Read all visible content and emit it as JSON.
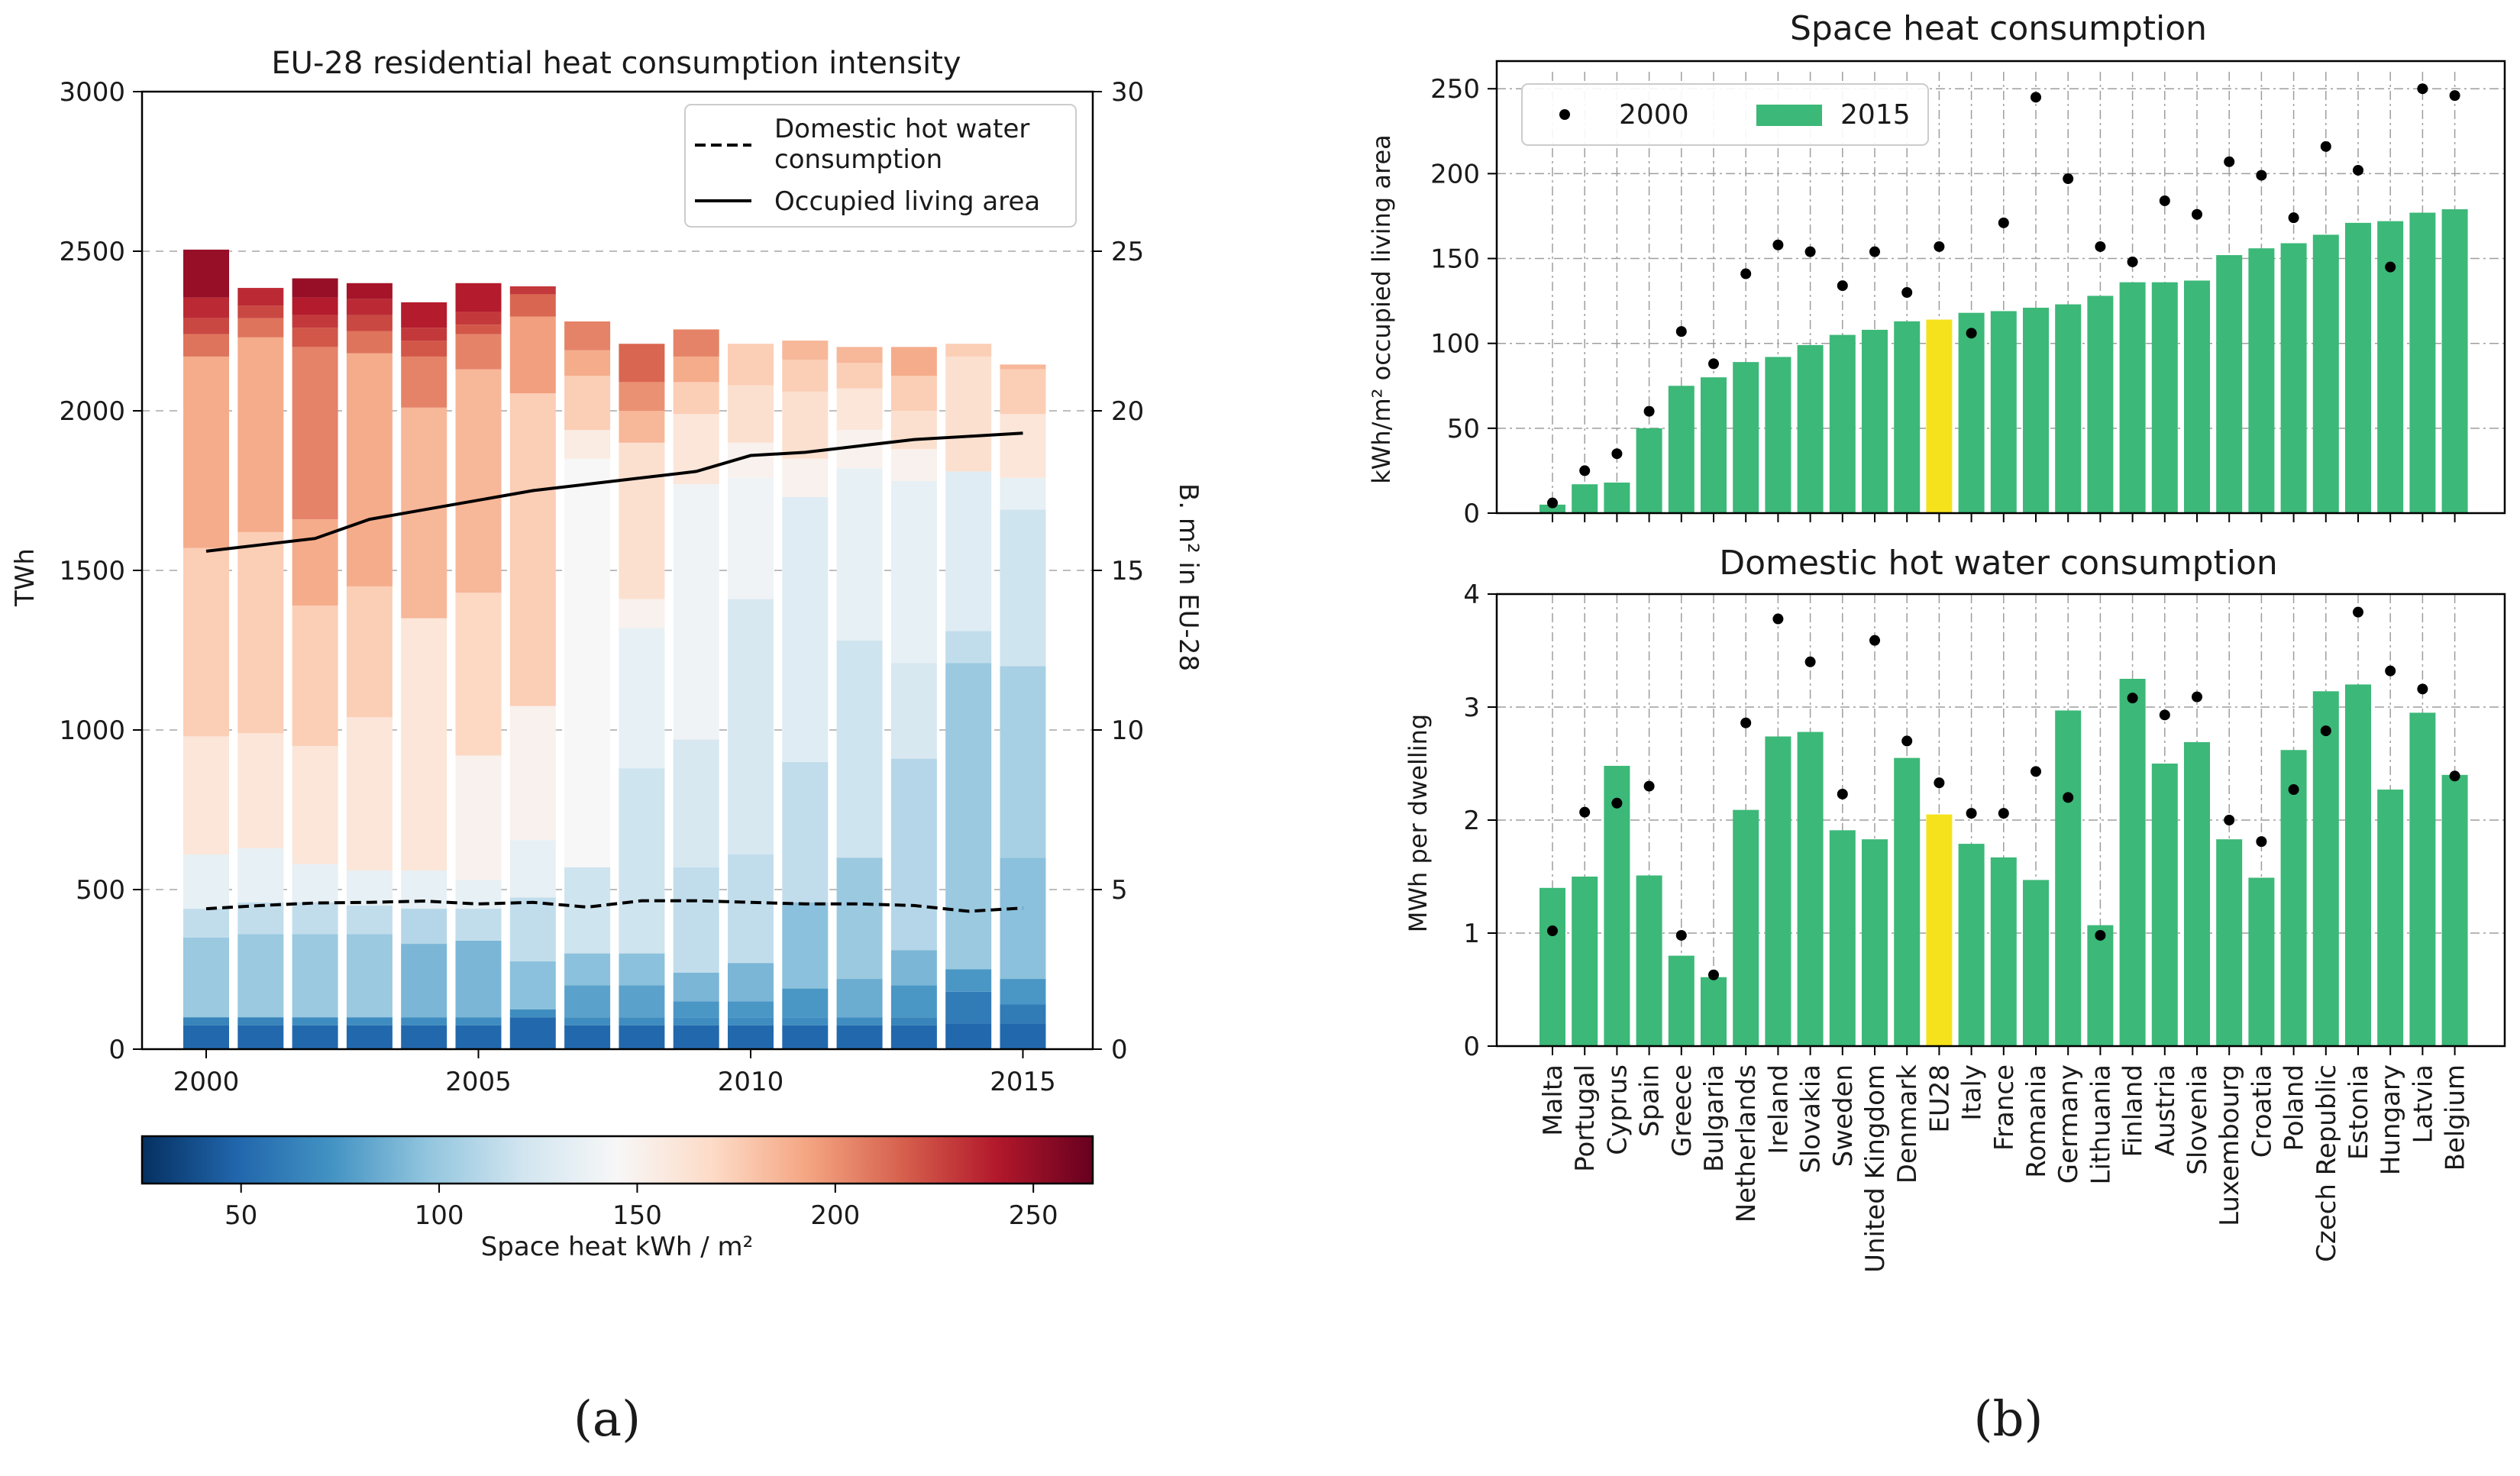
{
  "colors": {
    "green": "#3cb878",
    "highlight": "#f6e21c",
    "dot": "#000000",
    "grid": "#b0b0b0"
  },
  "panel_labels": {
    "a": "(a)",
    "b": "(b)"
  },
  "chart_data": [
    {
      "id": "a",
      "type": "bar",
      "stacked": true,
      "title": "EU-28 residential heat consumption intensity",
      "xlabel": "",
      "ylabel": "TWh",
      "y2label": "B. m² in EU-28",
      "ylim": [
        0,
        3000
      ],
      "y2lim": [
        0,
        30
      ],
      "yticks": [
        0,
        500,
        1000,
        1500,
        2000,
        2500,
        3000
      ],
      "y2ticks": [
        0,
        5,
        10,
        15,
        20,
        25,
        30
      ],
      "xticks": [
        2000,
        2005,
        2010,
        2015
      ],
      "years": [
        2000,
        2001,
        2002,
        2003,
        2004,
        2005,
        2006,
        2007,
        2008,
        2009,
        2010,
        2011,
        2012,
        2013,
        2014,
        2015
      ],
      "totals": [
        2405,
        2385,
        2425,
        2400,
        2340,
        2325,
        2390,
        2280,
        2310,
        2255,
        2210,
        2220,
        2200,
        2200,
        2210,
        2165
      ],
      "stacks": [
        [
          {
            "v": 75,
            "i": 50
          },
          {
            "v": 25,
            "i": 65
          },
          {
            "v": 250,
            "i": 100
          },
          {
            "v": 90,
            "i": 115
          },
          {
            "v": 170,
            "i": 135
          },
          {
            "v": 370,
            "i": 160
          },
          {
            "v": 590,
            "i": 175
          },
          {
            "v": 600,
            "i": 190
          },
          {
            "v": 70,
            "i": 210
          },
          {
            "v": 50,
            "i": 225
          },
          {
            "v": 65,
            "i": 235
          },
          {
            "v": 150,
            "i": 250
          }
        ],
        [
          {
            "v": 75,
            "i": 50
          },
          {
            "v": 25,
            "i": 65
          },
          {
            "v": 260,
            "i": 100
          },
          {
            "v": 100,
            "i": 115
          },
          {
            "v": 170,
            "i": 135
          },
          {
            "v": 360,
            "i": 160
          },
          {
            "v": 630,
            "i": 175
          },
          {
            "v": 610,
            "i": 190
          },
          {
            "v": 60,
            "i": 210
          },
          {
            "v": 40,
            "i": 225
          },
          {
            "v": 55,
            "i": 235
          }
        ],
        [
          {
            "v": 75,
            "i": 50
          },
          {
            "v": 25,
            "i": 70
          },
          {
            "v": 260,
            "i": 100
          },
          {
            "v": 100,
            "i": 115
          },
          {
            "v": 120,
            "i": 135
          },
          {
            "v": 370,
            "i": 160
          },
          {
            "v": 440,
            "i": 175
          },
          {
            "v": 270,
            "i": 190
          },
          {
            "v": 540,
            "i": 205
          },
          {
            "v": 60,
            "i": 220
          },
          {
            "v": 40,
            "i": 230
          },
          {
            "v": 55,
            "i": 240
          },
          {
            "v": 60,
            "i": 250
          }
        ],
        [
          {
            "v": 75,
            "i": 50
          },
          {
            "v": 25,
            "i": 70
          },
          {
            "v": 260,
            "i": 100
          },
          {
            "v": 90,
            "i": 115
          },
          {
            "v": 110,
            "i": 135
          },
          {
            "v": 480,
            "i": 160
          },
          {
            "v": 410,
            "i": 175
          },
          {
            "v": 730,
            "i": 190
          },
          {
            "v": 70,
            "i": 210
          },
          {
            "v": 50,
            "i": 225
          },
          {
            "v": 50,
            "i": 235
          },
          {
            "v": 50,
            "i": 245
          }
        ],
        [
          {
            "v": 75,
            "i": 50
          },
          {
            "v": 25,
            "i": 70
          },
          {
            "v": 230,
            "i": 90
          },
          {
            "v": 110,
            "i": 110
          },
          {
            "v": 120,
            "i": 135
          },
          {
            "v": 790,
            "i": 160
          },
          {
            "v": 660,
            "i": 185
          },
          {
            "v": 160,
            "i": 205
          },
          {
            "v": 50,
            "i": 220
          },
          {
            "v": 40,
            "i": 230
          },
          {
            "v": 80,
            "i": 240
          }
        ],
        [
          {
            "v": 75,
            "i": 50
          },
          {
            "v": 25,
            "i": 70
          },
          {
            "v": 240,
            "i": 90
          },
          {
            "v": 100,
            "i": 115
          },
          {
            "v": 90,
            "i": 135
          },
          {
            "v": 390,
            "i": 150
          },
          {
            "v": 510,
            "i": 170
          },
          {
            "v": 700,
            "i": 185
          },
          {
            "v": 110,
            "i": 205
          },
          {
            "v": 30,
            "i": 220
          },
          {
            "v": 40,
            "i": 230
          },
          {
            "v": 90,
            "i": 240
          }
        ],
        [
          {
            "v": 100,
            "i": 50
          },
          {
            "v": 25,
            "i": 70
          },
          {
            "v": 150,
            "i": 95
          },
          {
            "v": 200,
            "i": 115
          },
          {
            "v": 180,
            "i": 135
          },
          {
            "v": 420,
            "i": 150
          },
          {
            "v": 980,
            "i": 175
          },
          {
            "v": 240,
            "i": 195
          },
          {
            "v": 70,
            "i": 215
          },
          {
            "v": 25,
            "i": 230
          }
        ],
        [
          {
            "v": 75,
            "i": 50
          },
          {
            "v": 25,
            "i": 70
          },
          {
            "v": 100,
            "i": 80
          },
          {
            "v": 100,
            "i": 95
          },
          {
            "v": 270,
            "i": 120
          },
          {
            "v": 1280,
            "i": 145
          },
          {
            "v": 90,
            "i": 155
          },
          {
            "v": 170,
            "i": 175
          },
          {
            "v": 80,
            "i": 190
          },
          {
            "v": 90,
            "i": 205
          }
        ],
        [
          {
            "v": 75,
            "i": 50
          },
          {
            "v": 25,
            "i": 70
          },
          {
            "v": 100,
            "i": 80
          },
          {
            "v": 100,
            "i": 95
          },
          {
            "v": 580,
            "i": 120
          },
          {
            "v": 440,
            "i": 135
          },
          {
            "v": 90,
            "i": 150
          },
          {
            "v": 490,
            "i": 165
          },
          {
            "v": 100,
            "i": 185
          },
          {
            "v": 90,
            "i": 200
          },
          {
            "v": 120,
            "i": 215
          }
        ],
        [
          {
            "v": 75,
            "i": 50
          },
          {
            "v": 25,
            "i": 70
          },
          {
            "v": 50,
            "i": 75
          },
          {
            "v": 90,
            "i": 90
          },
          {
            "v": 330,
            "i": 115
          },
          {
            "v": 400,
            "i": 125
          },
          {
            "v": 800,
            "i": 140
          },
          {
            "v": 220,
            "i": 160
          },
          {
            "v": 100,
            "i": 175
          },
          {
            "v": 80,
            "i": 190
          },
          {
            "v": 85,
            "i": 205
          }
        ],
        [
          {
            "v": 75,
            "i": 50
          },
          {
            "v": 25,
            "i": 70
          },
          {
            "v": 50,
            "i": 75
          },
          {
            "v": 120,
            "i": 90
          },
          {
            "v": 340,
            "i": 115
          },
          {
            "v": 800,
            "i": 125
          },
          {
            "v": 380,
            "i": 140
          },
          {
            "v": 110,
            "i": 150
          },
          {
            "v": 180,
            "i": 165
          },
          {
            "v": 130,
            "i": 175
          }
        ],
        [
          {
            "v": 75,
            "i": 50
          },
          {
            "v": 25,
            "i": 70
          },
          {
            "v": 90,
            "i": 75
          },
          {
            "v": 270,
            "i": 95
          },
          {
            "v": 440,
            "i": 115
          },
          {
            "v": 830,
            "i": 130
          },
          {
            "v": 120,
            "i": 150
          },
          {
            "v": 210,
            "i": 165
          },
          {
            "v": 100,
            "i": 175
          },
          {
            "v": 60,
            "i": 185
          }
        ],
        [
          {
            "v": 75,
            "i": 50
          },
          {
            "v": 25,
            "i": 70
          },
          {
            "v": 120,
            "i": 85
          },
          {
            "v": 380,
            "i": 100
          },
          {
            "v": 680,
            "i": 120
          },
          {
            "v": 540,
            "i": 135
          },
          {
            "v": 120,
            "i": 150
          },
          {
            "v": 130,
            "i": 160
          },
          {
            "v": 80,
            "i": 175
          },
          {
            "v": 50,
            "i": 185
          }
        ],
        [
          {
            "v": 75,
            "i": 50
          },
          {
            "v": 25,
            "i": 65
          },
          {
            "v": 100,
            "i": 75
          },
          {
            "v": 110,
            "i": 90
          },
          {
            "v": 600,
            "i": 110
          },
          {
            "v": 300,
            "i": 125
          },
          {
            "v": 570,
            "i": 135
          },
          {
            "v": 100,
            "i": 150
          },
          {
            "v": 120,
            "i": 165
          },
          {
            "v": 110,
            "i": 175
          },
          {
            "v": 90,
            "i": 190
          }
        ],
        [
          {
            "v": 80,
            "i": 50
          },
          {
            "v": 100,
            "i": 60
          },
          {
            "v": 70,
            "i": 75
          },
          {
            "v": 960,
            "i": 100
          },
          {
            "v": 100,
            "i": 115
          },
          {
            "v": 500,
            "i": 130
          },
          {
            "v": 360,
            "i": 165
          },
          {
            "v": 40,
            "i": 175
          }
        ],
        [
          {
            "v": 80,
            "i": 50
          },
          {
            "v": 60,
            "i": 60
          },
          {
            "v": 80,
            "i": 75
          },
          {
            "v": 380,
            "i": 95
          },
          {
            "v": 600,
            "i": 105
          },
          {
            "v": 490,
            "i": 120
          },
          {
            "v": 100,
            "i": 135
          },
          {
            "v": 200,
            "i": 160
          },
          {
            "v": 140,
            "i": 175
          },
          {
            "v": 15,
            "i": 185
          }
        ]
      ],
      "dhw_twh": [
        440,
        450,
        458,
        460,
        464,
        455,
        460,
        445,
        465,
        465,
        460,
        455,
        455,
        450,
        432,
        442
      ],
      "area_bm2": [
        15.6,
        15.8,
        16.0,
        16.6,
        16.9,
        17.2,
        17.5,
        17.7,
        17.9,
        18.1,
        18.6,
        18.7,
        18.9,
        19.1,
        19.2,
        19.3
      ],
      "legend": {
        "dhw": "Domestic hot water consumption",
        "area": "Occupied living area"
      },
      "colorbar": {
        "label": "Space heat kWh / m²",
        "min": 25,
        "max": 265,
        "ticks": [
          50,
          100,
          150,
          200,
          250
        ]
      }
    },
    {
      "id": "b-top",
      "type": "bar",
      "title": "Space heat consumption",
      "ylabel": "kWh/m² occupied living area",
      "ylim": [
        0,
        260
      ],
      "yticks": [
        0,
        50,
        100,
        150,
        200,
        250
      ],
      "categories": [
        "Malta",
        "Portugal",
        "Cyprus",
        "Spain",
        "Greece",
        "Bulgaria",
        "Netherlands",
        "Ireland",
        "Slovakia",
        "Sweden",
        "United Kingdom",
        "Denmark",
        "EU28",
        "Italy",
        "France",
        "Romania",
        "Germany",
        "Lithuania",
        "Finland",
        "Austria",
        "Slovenia",
        "Luxembourg",
        "Croatia",
        "Poland",
        "Czech Republic",
        "Estonia",
        "Hungary",
        "Latvia",
        "Belgium"
      ],
      "highlight": "EU28",
      "series": [
        {
          "name": "2000",
          "values": [
            6,
            25,
            35,
            60,
            107,
            88,
            141,
            158,
            154,
            134,
            154,
            130,
            157,
            106,
            171,
            245,
            197,
            157,
            148,
            184,
            176,
            207,
            199,
            174,
            216,
            202,
            145,
            250,
            246
          ]
        },
        {
          "name": "2015",
          "values": [
            5,
            17,
            18,
            50,
            75,
            80,
            89,
            92,
            99,
            105,
            108,
            113,
            114,
            118,
            119,
            121,
            123,
            128,
            136,
            136,
            137,
            152,
            156,
            159,
            164,
            171,
            172,
            177,
            179
          ]
        }
      ]
    },
    {
      "id": "b-bottom",
      "type": "bar",
      "title": "Domestic hot water consumption",
      "ylabel": "MWh per dwelling",
      "ylim": [
        0,
        4
      ],
      "yticks": [
        0,
        1,
        2,
        3,
        4
      ],
      "categories": [
        "Malta",
        "Portugal",
        "Cyprus",
        "Spain",
        "Greece",
        "Bulgaria",
        "Netherlands",
        "Ireland",
        "Slovakia",
        "Sweden",
        "United Kingdom",
        "Denmark",
        "EU28",
        "Italy",
        "France",
        "Romania",
        "Germany",
        "Lithuania",
        "Finland",
        "Austria",
        "Slovenia",
        "Luxembourg",
        "Croatia",
        "Poland",
        "Czech Republic",
        "Estonia",
        "Hungary",
        "Latvia",
        "Belgium"
      ],
      "highlight": "EU28",
      "series": [
        {
          "name": "2000",
          "values": [
            1.02,
            2.07,
            2.15,
            2.3,
            0.98,
            0.63,
            2.86,
            3.78,
            3.4,
            2.23,
            3.59,
            2.7,
            2.33,
            2.06,
            2.06,
            2.43,
            2.2,
            0.98,
            3.08,
            2.93,
            3.09,
            2.0,
            1.81,
            2.27,
            2.79,
            3.84,
            3.32,
            3.16,
            2.39
          ]
        },
        {
          "name": "2015",
          "values": [
            1.4,
            1.5,
            2.48,
            1.51,
            0.8,
            0.61,
            2.09,
            2.74,
            2.78,
            1.91,
            1.83,
            2.55,
            2.05,
            1.79,
            1.67,
            1.47,
            2.97,
            1.07,
            3.25,
            2.5,
            2.69,
            1.83,
            1.49,
            2.62,
            3.14,
            3.2,
            2.27,
            2.95,
            2.4
          ]
        }
      ]
    }
  ]
}
